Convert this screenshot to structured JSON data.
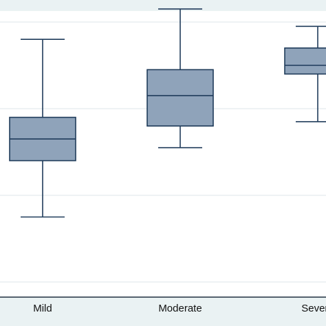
{
  "chart_data": {
    "type": "box",
    "categories": [
      "Mild",
      "Moderate",
      "Severe"
    ],
    "boxes": [
      {
        "category": "Mild",
        "whisker_low": 1.5,
        "q1": 2.8,
        "median": 3.3,
        "q3": 3.8,
        "whisker_high": 5.6
      },
      {
        "category": "Moderate",
        "whisker_low": 3.1,
        "q1": 3.6,
        "median": 4.3,
        "q3": 4.9,
        "whisker_high": 6.3
      },
      {
        "category": "Severe",
        "whisker_low": 3.7,
        "q1": 4.8,
        "median": 5.0,
        "q3": 5.4,
        "whisker_high": 5.9
      }
    ],
    "ylim": [
      0,
      7
    ],
    "yticks": [
      0,
      2,
      4,
      6
    ],
    "grid": true,
    "colors": {
      "box_fill": "#8fa3ba",
      "box_stroke": "#1f3b5a",
      "plot_background": "#ffffff",
      "outer_background": "#eaf2f3",
      "gridline": "#e4eaee"
    }
  }
}
